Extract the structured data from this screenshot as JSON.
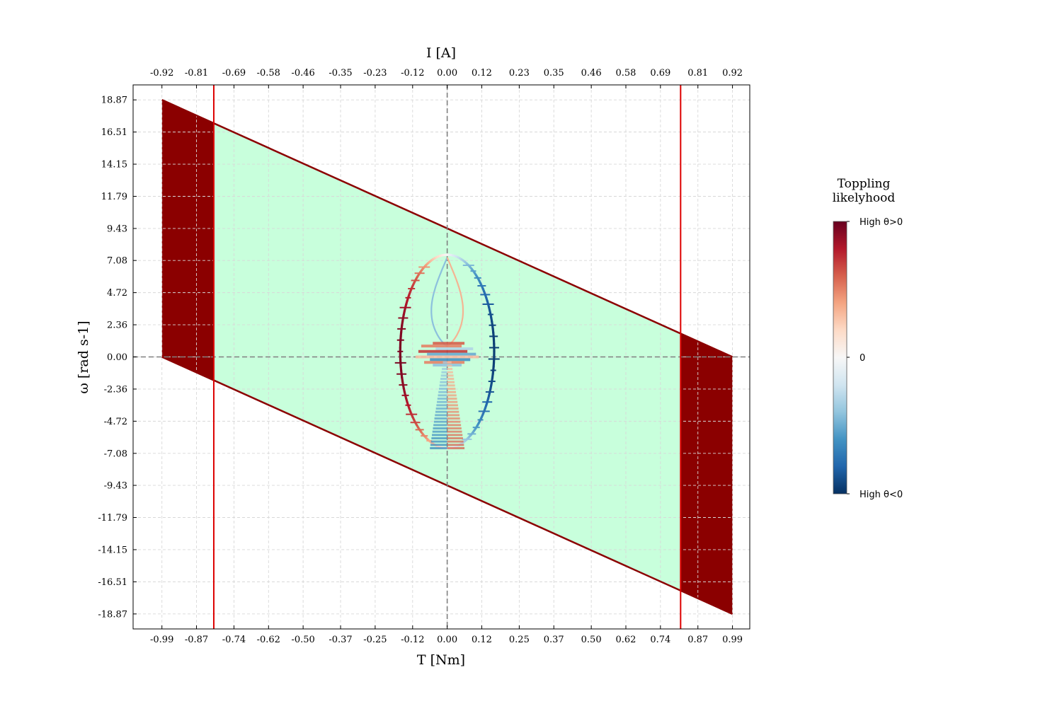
{
  "chart_data": {
    "type": "area",
    "xlabel": "T [Nm]",
    "ylabel": "ω [rad s-1]",
    "x2label": "I [A]",
    "x_ticks": [
      "-0.99",
      "-0.87",
      "-0.74",
      "-0.62",
      "-0.50",
      "-0.37",
      "-0.25",
      "-0.12",
      "0.00",
      "0.12",
      "0.25",
      "0.37",
      "0.50",
      "0.62",
      "0.74",
      "0.87",
      "0.99"
    ],
    "x2_ticks": [
      "-0.92",
      "-0.81",
      "-0.69",
      "-0.58",
      "-0.46",
      "-0.35",
      "-0.23",
      "-0.12",
      "0.00",
      "0.12",
      "0.23",
      "0.35",
      "0.46",
      "0.58",
      "0.69",
      "0.81",
      "0.92"
    ],
    "y_ticks": [
      "18.87",
      "16.51",
      "14.15",
      "11.79",
      "9.43",
      "7.08",
      "4.72",
      "2.36",
      "0.00",
      "-2.36",
      "-4.72",
      "-7.08",
      "-9.43",
      "-11.79",
      "-14.15",
      "-16.51",
      "-18.87"
    ],
    "xlim": [
      -1.09,
      1.05
    ],
    "ylim": [
      -19.97,
      19.97
    ],
    "grid": true,
    "torque_limit_lines_x": [
      -0.81,
      0.81
    ],
    "operating_envelope": [
      [
        -0.99,
        18.87
      ],
      [
        0.99,
        0.0
      ],
      [
        0.99,
        -18.87
      ],
      [
        -0.99,
        0.0
      ]
    ],
    "feasible_region": [
      [
        -0.81,
        17.14
      ],
      [
        0.81,
        1.73
      ],
      [
        0.81,
        -17.14
      ],
      [
        -0.81,
        -1.73
      ]
    ],
    "colors": {
      "feasible_fill": "#c8ffdc",
      "infeasible_fill": "#8b0000",
      "envelope_edge": "#8b0000",
      "limit_line": "#dd0000",
      "zero_line": "#808080",
      "grid": "#cccccc"
    },
    "trajectory": {
      "outer_ellipse": {
        "center": [
          0.0,
          0.4
        ],
        "rx_T": 0.163,
        "ry_w": 7.1,
        "left_color": "#a5132a",
        "right_color": "#1c5a9c"
      },
      "inner_loop": {
        "top_w": 7.3,
        "half_width_T": 0.055,
        "bottom_w": 0.8
      },
      "lower_fan": {
        "top_w": -0.4,
        "bottom_w": -6.7,
        "half_width_T": 0.06
      }
    },
    "colorbar": {
      "title_lines": [
        "Toppling",
        "likelyhood"
      ],
      "high_label": "High θ>0",
      "mid_label": "0",
      "low_label": "High θ<0",
      "colors": [
        "#67001f",
        "#b2182b",
        "#d6604d",
        "#f4a582",
        "#fddbc7",
        "#f7f7f7",
        "#d1e5f0",
        "#92c5de",
        "#4393c3",
        "#2166ac",
        "#053061"
      ]
    }
  }
}
